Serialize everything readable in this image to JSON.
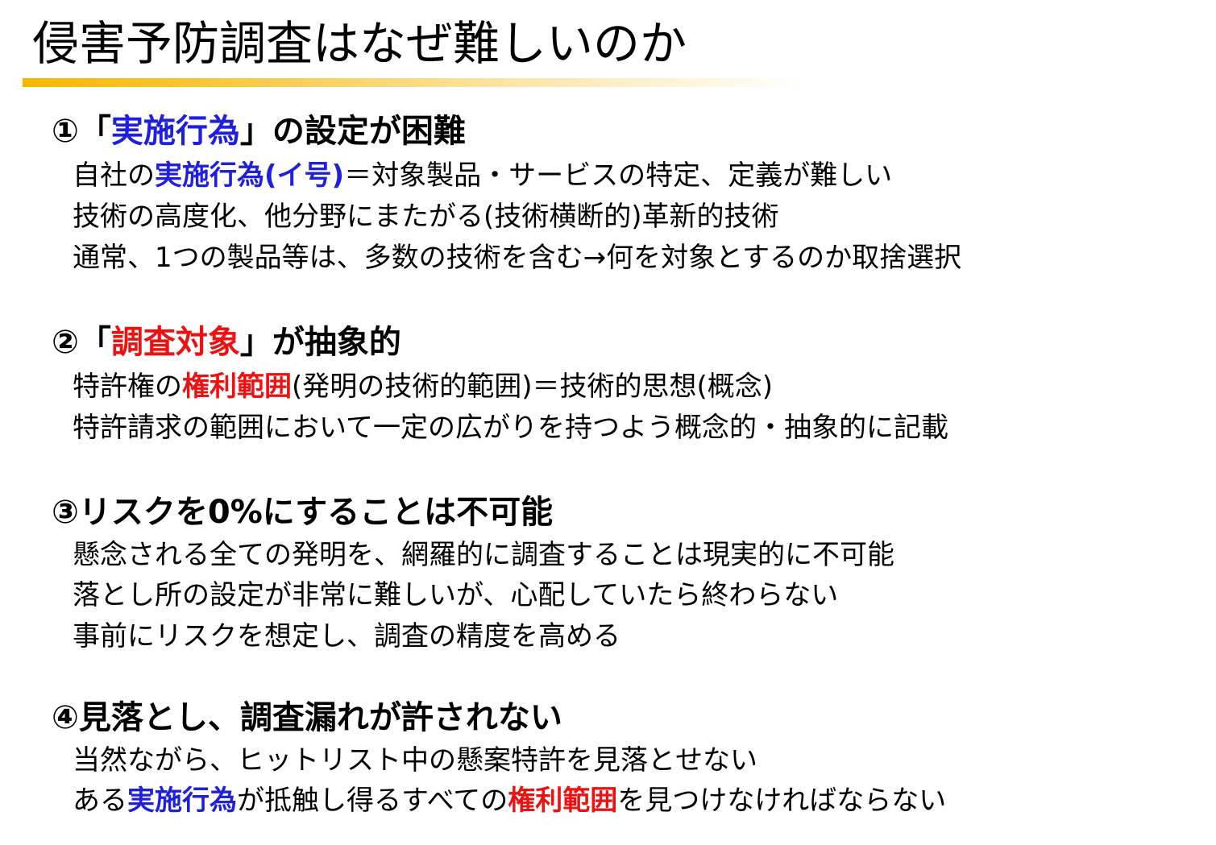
{
  "title": "侵害予防調査はなぜ難しいのか",
  "colors": {
    "accent_underline": "#f5b800",
    "highlight_blue": "#1f1fe0",
    "highlight_red": "#ee1111"
  },
  "sections": [
    {
      "heading": {
        "prefix": "①「",
        "highlight": "実施行為",
        "suffix": "」の設定が困難"
      },
      "lines": [
        {
          "a": "自社の",
          "b": "実施行為(イ号)",
          "c": "＝対象製品・サービスの特定、定義が難しい"
        },
        {
          "text": "技術の高度化、他分野にまたがる(技術横断的)革新的技術"
        },
        {
          "text": "通常、1つの製品等は、多数の技術を含む→何を対象とするのか取捨選択"
        }
      ]
    },
    {
      "heading": {
        "prefix": "②「",
        "highlight": "調査対象",
        "suffix": "」が抽象的"
      },
      "lines": [
        {
          "a": "特許権の",
          "b": "権利範囲",
          "c": "(発明の技術的範囲)＝技術的思想(概念)"
        },
        {
          "text": "特許請求の範囲において一定の広がりを持つよう概念的・抽象的に記載"
        }
      ]
    },
    {
      "heading": {
        "text": "③リスクを0%にすることは不可能"
      },
      "lines": [
        {
          "text": "懸念される全ての発明を、網羅的に調査することは現実的に不可能"
        },
        {
          "text": "落とし所の設定が非常に難しいが、心配していたら終わらない"
        },
        {
          "text": "事前にリスクを想定し、調査の精度を高める"
        }
      ]
    },
    {
      "heading": {
        "text": "④見落とし、調査漏れが許されない"
      },
      "lines": [
        {
          "text": "当然ながら、ヒットリスト中の懸案特許を見落とせない"
        },
        {
          "a": "ある",
          "b": "実施行為",
          "c": "が抵触し得るすべての",
          "d": "権利範囲",
          "e": "を見つけなければならない"
        }
      ]
    }
  ]
}
